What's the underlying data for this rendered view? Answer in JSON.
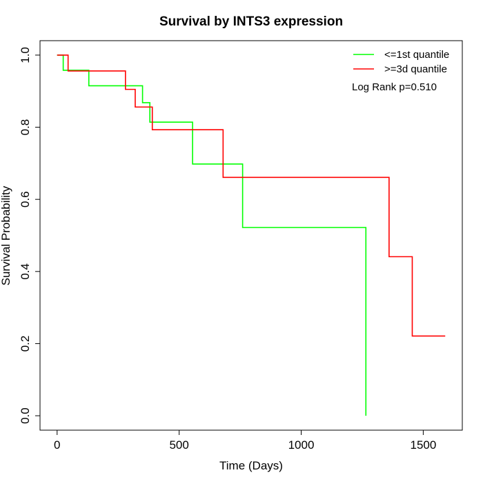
{
  "chart_data": {
    "type": "line",
    "step": true,
    "title": "Survival by INTS3 expression",
    "xlabel": "Time (Days)",
    "ylabel": "Survival Probability",
    "xlim": [
      -70,
      1660
    ],
    "ylim": [
      -0.04,
      1.04
    ],
    "xticks": [
      0,
      500,
      1000,
      1500
    ],
    "yticks": [
      0.0,
      0.2,
      0.4,
      0.6,
      0.8,
      1.0
    ],
    "xtick_labels": [
      "0",
      "500",
      "1000",
      "1500"
    ],
    "ytick_labels": [
      "0.0",
      "0.2",
      "0.4",
      "0.6",
      "0.8",
      "1.0"
    ],
    "grid": false,
    "legend_position": "top-right",
    "annotation": "Log Rank p=0.510",
    "series": [
      {
        "name": "<=1st quantile",
        "color": "#00ff00",
        "x": [
          0,
          25,
          130,
          350,
          380,
          555,
          760,
          1265
        ],
        "y": [
          1.0,
          0.958,
          0.915,
          0.868,
          0.814,
          0.698,
          0.522,
          0.0
        ]
      },
      {
        "name": ">=3d quantile",
        "color": "#ff0000",
        "x": [
          0,
          45,
          280,
          320,
          390,
          680,
          1360,
          1455,
          1590
        ],
        "y": [
          1.0,
          0.956,
          0.905,
          0.856,
          0.793,
          0.661,
          0.441,
          0.221,
          0.221
        ]
      }
    ]
  }
}
